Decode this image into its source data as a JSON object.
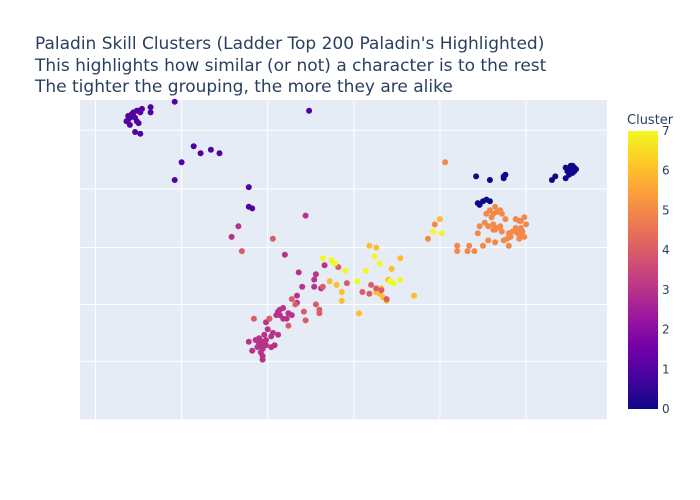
{
  "chart_data": {
    "type": "scatter",
    "title_lines": [
      "Paladin Skill Clusters (Ladder Top 200 Paladin's Highlighted)",
      "This highlights how similar (or not) a character is to the rest",
      "The tighter the grouping, the more they are alike"
    ],
    "xlabel": "",
    "ylabel": "",
    "xlim": [
      -2.6,
      28
    ],
    "ylim": [
      -4.2,
      13.8
    ],
    "x_grid": [
      -1.7,
      3.3,
      8.3,
      13.3,
      18.3,
      23.3,
      28.3
    ],
    "y_grid": [
      12.1,
      8.8,
      5.5,
      2.3,
      -0.9,
      -4.2
    ],
    "grid": true,
    "colorbar": {
      "title": "Cluster",
      "min": 0,
      "max": 7,
      "ticks": [
        0,
        1,
        2,
        3,
        4,
        5,
        6,
        7
      ],
      "colorscale": [
        "#0d0887",
        "#46039f",
        "#7201a8",
        "#9c179e",
        "#bd3786",
        "#d8576b",
        "#ed7953",
        "#fb9f3a",
        "#fdca26",
        "#f0f921"
      ]
    },
    "points": [
      {
        "x": 0.1,
        "y": 12.6,
        "c": 1
      },
      {
        "x": 0.2,
        "y": 12.9,
        "c": 1
      },
      {
        "x": 0.3,
        "y": 12.8,
        "c": 1
      },
      {
        "x": 0.4,
        "y": 13.0,
        "c": 1
      },
      {
        "x": 0.5,
        "y": 12.9,
        "c": 1
      },
      {
        "x": 0.5,
        "y": 13.1,
        "c": 1
      },
      {
        "x": 0.6,
        "y": 12.8,
        "c": 1
      },
      {
        "x": 0.7,
        "y": 13.2,
        "c": 1
      },
      {
        "x": 0.8,
        "y": 13.2,
        "c": 1
      },
      {
        "x": 0.9,
        "y": 13.1,
        "c": 1
      },
      {
        "x": 1.0,
        "y": 13.3,
        "c": 1
      },
      {
        "x": 0.7,
        "y": 12.6,
        "c": 1
      },
      {
        "x": 0.8,
        "y": 12.5,
        "c": 1
      },
      {
        "x": 0.2,
        "y": 12.7,
        "c": 1
      },
      {
        "x": 0.3,
        "y": 12.4,
        "c": 1
      },
      {
        "x": 0.6,
        "y": 12.0,
        "c": 1
      },
      {
        "x": 0.9,
        "y": 11.9,
        "c": 1
      },
      {
        "x": 2.9,
        "y": 13.7,
        "c": 1
      },
      {
        "x": 1.5,
        "y": 13.1,
        "c": 1
      },
      {
        "x": 1.5,
        "y": 13.4,
        "c": 1
      },
      {
        "x": 10.7,
        "y": 13.2,
        "c": 1
      },
      {
        "x": 4.0,
        "y": 11.2,
        "c": 1
      },
      {
        "x": 4.4,
        "y": 10.8,
        "c": 1
      },
      {
        "x": 3.3,
        "y": 10.3,
        "c": 1
      },
      {
        "x": 5.0,
        "y": 11.0,
        "c": 1
      },
      {
        "x": 5.5,
        "y": 10.8,
        "c": 1
      },
      {
        "x": 2.9,
        "y": 9.3,
        "c": 1
      },
      {
        "x": 7.2,
        "y": 8.9,
        "c": 1
      },
      {
        "x": 7.2,
        "y": 7.8,
        "c": 1
      },
      {
        "x": 7.4,
        "y": 7.7,
        "c": 1
      },
      {
        "x": 20.5,
        "y": 8.0,
        "c": 0
      },
      {
        "x": 20.8,
        "y": 8.1,
        "c": 0
      },
      {
        "x": 21.0,
        "y": 8.2,
        "c": 0
      },
      {
        "x": 21.2,
        "y": 8.1,
        "c": 0
      },
      {
        "x": 20.6,
        "y": 7.9,
        "c": 0
      },
      {
        "x": 20.4,
        "y": 9.5,
        "c": 0
      },
      {
        "x": 21.2,
        "y": 9.3,
        "c": 0
      },
      {
        "x": 22.0,
        "y": 9.5,
        "c": 0
      },
      {
        "x": 22.0,
        "y": 9.4,
        "c": 0
      },
      {
        "x": 22.1,
        "y": 9.6,
        "c": 0
      },
      {
        "x": 24.8,
        "y": 9.3,
        "c": 0
      },
      {
        "x": 25.0,
        "y": 9.5,
        "c": 0
      },
      {
        "x": 25.6,
        "y": 9.4,
        "c": 0
      },
      {
        "x": 25.7,
        "y": 9.8,
        "c": 0
      },
      {
        "x": 25.8,
        "y": 9.6,
        "c": 0
      },
      {
        "x": 26.0,
        "y": 9.9,
        "c": 0
      },
      {
        "x": 26.1,
        "y": 9.8,
        "c": 0
      },
      {
        "x": 25.9,
        "y": 10.1,
        "c": 0
      },
      {
        "x": 26.1,
        "y": 10.0,
        "c": 0
      },
      {
        "x": 25.6,
        "y": 10.0,
        "c": 0
      },
      {
        "x": 26.0,
        "y": 9.7,
        "c": 0
      },
      {
        "x": 26.2,
        "y": 9.9,
        "c": 0
      },
      {
        "x": 25.8,
        "y": 9.9,
        "c": 0
      },
      {
        "x": 26.0,
        "y": 10.1,
        "c": 0
      },
      {
        "x": 22.1,
        "y": 7.1,
        "c": 5
      },
      {
        "x": 21.9,
        "y": 7.4,
        "c": 5
      },
      {
        "x": 21.8,
        "y": 7.6,
        "c": 5
      },
      {
        "x": 21.5,
        "y": 7.8,
        "c": 5
      },
      {
        "x": 21.6,
        "y": 7.5,
        "c": 5
      },
      {
        "x": 21.4,
        "y": 7.4,
        "c": 5
      },
      {
        "x": 21.3,
        "y": 7.2,
        "c": 5
      },
      {
        "x": 21.2,
        "y": 7.6,
        "c": 5
      },
      {
        "x": 21.0,
        "y": 7.4,
        "c": 5
      },
      {
        "x": 20.9,
        "y": 6.9,
        "c": 5
      },
      {
        "x": 21.1,
        "y": 6.7,
        "c": 5
      },
      {
        "x": 21.4,
        "y": 6.8,
        "c": 5
      },
      {
        "x": 21.5,
        "y": 6.5,
        "c": 5
      },
      {
        "x": 20.6,
        "y": 6.7,
        "c": 5
      },
      {
        "x": 20.5,
        "y": 6.3,
        "c": 5
      },
      {
        "x": 21.9,
        "y": 6.4,
        "c": 5
      },
      {
        "x": 22.3,
        "y": 6.3,
        "c": 5
      },
      {
        "x": 22.5,
        "y": 6.4,
        "c": 5
      },
      {
        "x": 22.8,
        "y": 6.3,
        "c": 5
      },
      {
        "x": 22.7,
        "y": 6.6,
        "c": 5
      },
      {
        "x": 23.0,
        "y": 6.5,
        "c": 5
      },
      {
        "x": 23.1,
        "y": 6.4,
        "c": 5
      },
      {
        "x": 23.0,
        "y": 6.2,
        "c": 5
      },
      {
        "x": 22.9,
        "y": 6.0,
        "c": 5
      },
      {
        "x": 23.2,
        "y": 6.1,
        "c": 5
      },
      {
        "x": 23.0,
        "y": 6.6,
        "c": 5
      },
      {
        "x": 23.2,
        "y": 7.2,
        "c": 5
      },
      {
        "x": 23.3,
        "y": 6.8,
        "c": 5
      },
      {
        "x": 22.9,
        "y": 7.0,
        "c": 5
      },
      {
        "x": 22.7,
        "y": 7.1,
        "c": 5
      },
      {
        "x": 22.4,
        "y": 6.1,
        "c": 5
      },
      {
        "x": 22.2,
        "y": 6.0,
        "c": 5
      },
      {
        "x": 21.8,
        "y": 6.7,
        "c": 5
      },
      {
        "x": 21.6,
        "y": 6.6,
        "c": 5
      },
      {
        "x": 21.4,
        "y": 6.5,
        "c": 5
      },
      {
        "x": 23.0,
        "y": 7.0,
        "c": 5
      },
      {
        "x": 18.0,
        "y": 6.8,
        "c": 5
      },
      {
        "x": 19.3,
        "y": 5.3,
        "c": 5
      },
      {
        "x": 19.3,
        "y": 5.6,
        "c": 5
      },
      {
        "x": 19.9,
        "y": 5.3,
        "c": 5
      },
      {
        "x": 20.0,
        "y": 5.6,
        "c": 5
      },
      {
        "x": 20.3,
        "y": 5.3,
        "c": 5
      },
      {
        "x": 20.8,
        "y": 5.6,
        "c": 5
      },
      {
        "x": 21.1,
        "y": 5.9,
        "c": 5
      },
      {
        "x": 21.5,
        "y": 5.8,
        "c": 5
      },
      {
        "x": 22.0,
        "y": 5.9,
        "c": 5
      },
      {
        "x": 22.3,
        "y": 5.6,
        "c": 5
      },
      {
        "x": 17.6,
        "y": 6.0,
        "c": 5
      },
      {
        "x": 18.6,
        "y": 10.3,
        "c": 5
      },
      {
        "x": 18.3,
        "y": 7.1,
        "c": 6
      },
      {
        "x": 14.2,
        "y": 5.6,
        "c": 6
      },
      {
        "x": 14.6,
        "y": 5.5,
        "c": 6
      },
      {
        "x": 15.5,
        "y": 4.3,
        "c": 6
      },
      {
        "x": 16.0,
        "y": 4.9,
        "c": 6
      },
      {
        "x": 15.3,
        "y": 3.7,
        "c": 6
      },
      {
        "x": 14.9,
        "y": 3.2,
        "c": 6
      },
      {
        "x": 14.6,
        "y": 3.0,
        "c": 6
      },
      {
        "x": 14.8,
        "y": 2.9,
        "c": 6
      },
      {
        "x": 15.0,
        "y": 2.7,
        "c": 6
      },
      {
        "x": 15.2,
        "y": 2.5,
        "c": 6
      },
      {
        "x": 13.6,
        "y": 1.8,
        "c": 6
      },
      {
        "x": 11.9,
        "y": 3.6,
        "c": 6
      },
      {
        "x": 12.3,
        "y": 3.4,
        "c": 6
      },
      {
        "x": 12.6,
        "y": 3.0,
        "c": 6
      },
      {
        "x": 12.6,
        "y": 2.5,
        "c": 6
      },
      {
        "x": 16.8,
        "y": 2.8,
        "c": 6
      },
      {
        "x": 10.5,
        "y": 7.3,
        "c": 3
      },
      {
        "x": 6.6,
        "y": 6.7,
        "c": 3
      },
      {
        "x": 6.2,
        "y": 6.1,
        "c": 3
      },
      {
        "x": 9.3,
        "y": 5.1,
        "c": 3
      },
      {
        "x": 10.1,
        "y": 4.1,
        "c": 3
      },
      {
        "x": 11.6,
        "y": 4.5,
        "c": 3
      },
      {
        "x": 11.1,
        "y": 4.0,
        "c": 3
      },
      {
        "x": 11.0,
        "y": 3.7,
        "c": 3
      },
      {
        "x": 11.0,
        "y": 3.3,
        "c": 3
      },
      {
        "x": 11.4,
        "y": 3.2,
        "c": 3
      },
      {
        "x": 10.3,
        "y": 3.3,
        "c": 3
      },
      {
        "x": 10.0,
        "y": 2.8,
        "c": 3
      },
      {
        "x": 10.0,
        "y": 2.4,
        "c": 3
      },
      {
        "x": 9.2,
        "y": 2.1,
        "c": 3
      },
      {
        "x": 9.0,
        "y": 2.0,
        "c": 3
      },
      {
        "x": 8.9,
        "y": 1.9,
        "c": 3
      },
      {
        "x": 9.0,
        "y": 1.7,
        "c": 3
      },
      {
        "x": 9.2,
        "y": 1.5,
        "c": 3
      },
      {
        "x": 9.5,
        "y": 1.8,
        "c": 3
      },
      {
        "x": 9.4,
        "y": 1.5,
        "c": 3
      },
      {
        "x": 8.8,
        "y": 1.7,
        "c": 3
      },
      {
        "x": 8.4,
        "y": 1.5,
        "c": 3
      },
      {
        "x": 9.7,
        "y": 1.7,
        "c": 3
      },
      {
        "x": 8.2,
        "y": 1.3,
        "c": 3
      },
      {
        "x": 8.3,
        "y": 0.9,
        "c": 3
      },
      {
        "x": 8.6,
        "y": 0.7,
        "c": 3
      },
      {
        "x": 8.1,
        "y": 0.6,
        "c": 3
      },
      {
        "x": 8.5,
        "y": 0.5,
        "c": 3
      },
      {
        "x": 8.2,
        "y": 0.3,
        "c": 3
      },
      {
        "x": 8.0,
        "y": 0.2,
        "c": 3
      },
      {
        "x": 7.9,
        "y": 0.0,
        "c": 3
      },
      {
        "x": 8.0,
        "y": -0.2,
        "c": 3
      },
      {
        "x": 7.8,
        "y": 0.4,
        "c": 3
      },
      {
        "x": 8.5,
        "y": -0.1,
        "c": 3
      },
      {
        "x": 8.0,
        "y": -0.6,
        "c": 3
      },
      {
        "x": 8.0,
        "y": -0.8,
        "c": 3
      },
      {
        "x": 7.6,
        "y": 0.3,
        "c": 3
      },
      {
        "x": 7.8,
        "y": 0.1,
        "c": 3
      },
      {
        "x": 8.7,
        "y": 0.0,
        "c": 3
      },
      {
        "x": 7.4,
        "y": -0.3,
        "c": 3
      },
      {
        "x": 7.7,
        "y": -0.1,
        "c": 3
      },
      {
        "x": 8.9,
        "y": 0.6,
        "c": 3
      },
      {
        "x": 7.2,
        "y": 0.2,
        "c": 3
      },
      {
        "x": 8.2,
        "y": 0.0,
        "c": 3
      },
      {
        "x": 7.9,
        "y": -0.4,
        "c": 3
      },
      {
        "x": 6.8,
        "y": 5.3,
        "c": 4
      },
      {
        "x": 8.6,
        "y": 6.0,
        "c": 4
      },
      {
        "x": 8.4,
        "y": 1.5,
        "c": 4
      },
      {
        "x": 9.7,
        "y": 2.6,
        "c": 4
      },
      {
        "x": 9.9,
        "y": 2.3,
        "c": 4
      },
      {
        "x": 10.4,
        "y": 1.9,
        "c": 4
      },
      {
        "x": 11.3,
        "y": 2.0,
        "c": 4
      },
      {
        "x": 10.5,
        "y": 1.4,
        "c": 4
      },
      {
        "x": 11.1,
        "y": 2.3,
        "c": 4
      },
      {
        "x": 11.5,
        "y": 3.3,
        "c": 4
      },
      {
        "x": 9.5,
        "y": 1.1,
        "c": 4
      },
      {
        "x": 7.5,
        "y": 1.5,
        "c": 4
      },
      {
        "x": 13.8,
        "y": 3.0,
        "c": 4
      },
      {
        "x": 14.3,
        "y": 3.4,
        "c": 4
      },
      {
        "x": 14.6,
        "y": 3.2,
        "c": 4
      },
      {
        "x": 14.9,
        "y": 3.1,
        "c": 4
      },
      {
        "x": 14.2,
        "y": 2.9,
        "c": 4
      },
      {
        "x": 15.2,
        "y": 2.6,
        "c": 4
      },
      {
        "x": 12.9,
        "y": 3.5,
        "c": 4
      },
      {
        "x": 12.4,
        "y": 4.4,
        "c": 4
      },
      {
        "x": 11.3,
        "y": 1.8,
        "c": 4
      },
      {
        "x": 11.5,
        "y": 4.9,
        "c": 7
      },
      {
        "x": 12.2,
        "y": 4.6,
        "c": 7
      },
      {
        "x": 12.8,
        "y": 4.2,
        "c": 7
      },
      {
        "x": 14.8,
        "y": 4.6,
        "c": 7
      },
      {
        "x": 15.4,
        "y": 3.6,
        "c": 7
      },
      {
        "x": 14.5,
        "y": 5.0,
        "c": 7
      },
      {
        "x": 16.0,
        "y": 3.7,
        "c": 7
      },
      {
        "x": 15.6,
        "y": 3.5,
        "c": 7
      },
      {
        "x": 13.5,
        "y": 3.6,
        "c": 7
      },
      {
        "x": 14.0,
        "y": 4.2,
        "c": 7
      },
      {
        "x": 17.9,
        "y": 6.4,
        "c": 7
      },
      {
        "x": 18.4,
        "y": 6.3,
        "c": 7
      },
      {
        "x": 12.0,
        "y": 4.8,
        "c": 7
      }
    ]
  }
}
